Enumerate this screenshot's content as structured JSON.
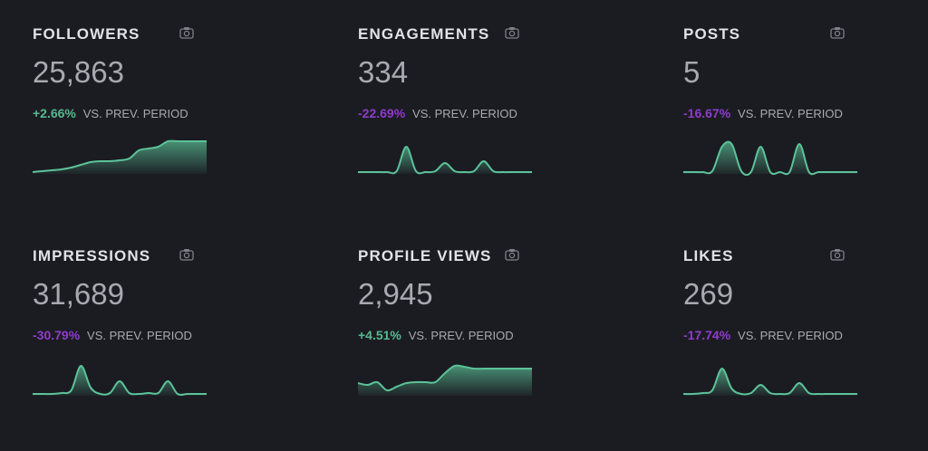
{
  "theme": {
    "background": "#1b1c22",
    "title": "#e1e2e8",
    "value": "#a9aab1",
    "positive": "#56b98f",
    "negative": "#8e3ccb",
    "spark_line": "#5cc399",
    "spark_fill": "#5cc399"
  },
  "cards": [
    {
      "title": "FOLLOWERS",
      "value": "25,863",
      "delta": "+2.66%",
      "delta_sign": "pos",
      "suffix": "VS. PREV. PERIOD",
      "icon": "camera-icon",
      "spark": [
        2,
        3,
        4,
        5,
        7,
        10,
        13,
        14,
        14,
        15,
        17,
        26,
        28,
        30,
        36,
        36,
        36,
        36,
        36
      ]
    },
    {
      "title": "ENGAGEMENTS",
      "value": "334",
      "delta": "-22.69%",
      "delta_sign": "neg",
      "suffix": "VS. PREV. PERIOD",
      "icon": "camera-icon",
      "spark": [
        2,
        2,
        2,
        2,
        3,
        30,
        3,
        2,
        3,
        12,
        3,
        2,
        3,
        14,
        3,
        2,
        2,
        2,
        2
      ]
    },
    {
      "title": "POSTS",
      "value": "5",
      "delta": "-16.67%",
      "delta_sign": "neg",
      "suffix": "VS. PREV. PERIOD",
      "icon": "camera-icon",
      "spark": [
        2,
        2,
        2,
        3,
        30,
        33,
        3,
        2,
        30,
        2,
        2,
        2,
        33,
        2,
        2,
        2,
        2,
        2,
        2
      ]
    },
    {
      "title": "IMPRESSIONS",
      "value": "31,689",
      "delta": "-30.79%",
      "delta_sign": "neg",
      "suffix": "VS. PREV. PERIOD",
      "icon": "camera-icon",
      "spark": [
        2,
        2,
        2,
        3,
        6,
        33,
        9,
        2,
        3,
        16,
        3,
        2,
        3,
        3,
        16,
        2,
        2,
        2,
        2
      ]
    },
    {
      "title": "PROFILE VIEWS",
      "value": "2,945",
      "delta": "+4.51%",
      "delta_sign": "pos",
      "suffix": "VS. PREV. PERIOD",
      "icon": "camera-icon",
      "spark": [
        14,
        12,
        15,
        6,
        10,
        14,
        15,
        15,
        15,
        25,
        33,
        32,
        30,
        30,
        30,
        30,
        30,
        30,
        30
      ]
    },
    {
      "title": "LIKES",
      "value": "269",
      "delta": "-17.74%",
      "delta_sign": "neg",
      "suffix": "VS. PREV. PERIOD",
      "icon": "camera-icon",
      "spark": [
        2,
        2,
        3,
        6,
        30,
        8,
        2,
        3,
        12,
        3,
        2,
        3,
        14,
        3,
        2,
        2,
        2,
        2,
        2
      ]
    }
  ]
}
